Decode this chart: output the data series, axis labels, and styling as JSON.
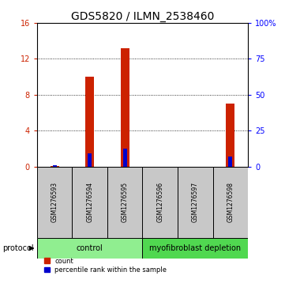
{
  "title": "GDS5820 / ILMN_2538460",
  "samples": [
    "GSM1276593",
    "GSM1276594",
    "GSM1276595",
    "GSM1276596",
    "GSM1276597",
    "GSM1276598"
  ],
  "red_values": [
    0.05,
    10.0,
    13.2,
    0.0,
    0.0,
    7.0
  ],
  "blue_pct": [
    1.0,
    9.0,
    12.5,
    0.0,
    0.0,
    7.0
  ],
  "ylim_left": [
    0,
    16
  ],
  "ylim_right": [
    0,
    100
  ],
  "yticks_left": [
    0,
    4,
    8,
    12,
    16
  ],
  "ytick_labels_left": [
    "0",
    "4",
    "8",
    "12",
    "16"
  ],
  "yticks_right": [
    0,
    25,
    50,
    75,
    100
  ],
  "ytick_labels_right": [
    "0",
    "25",
    "50",
    "75",
    "100%"
  ],
  "groups": [
    {
      "label": "control",
      "indices": [
        0,
        1,
        2
      ],
      "color": "#90EE90"
    },
    {
      "label": "myofibroblast depletion",
      "indices": [
        3,
        4,
        5
      ],
      "color": "#50D850"
    }
  ],
  "red_color": "#CC2200",
  "blue_color": "#0000CC",
  "bg_color": "#FFFFFF",
  "panel_bg": "#C8C8C8",
  "legend_red": "count",
  "legend_blue": "percentile rank within the sample",
  "protocol_label": "protocol",
  "title_fontsize": 10,
  "tick_fontsize": 7,
  "sample_fontsize": 5.5,
  "group_fontsize": 7,
  "legend_fontsize": 6
}
